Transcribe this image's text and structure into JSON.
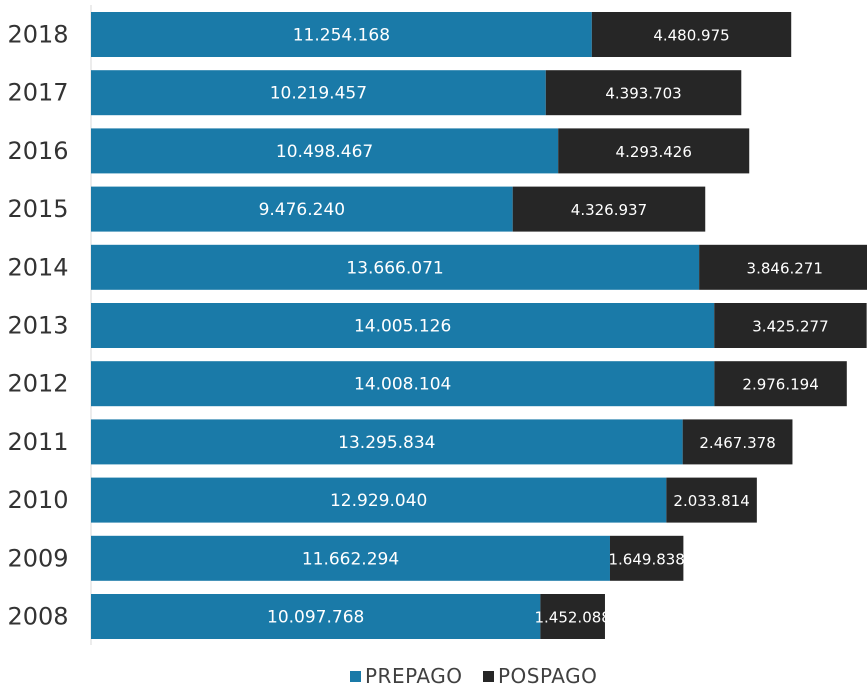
{
  "chart_data": {
    "type": "bar",
    "orientation": "horizontal",
    "stacked": true,
    "categories": [
      "2018",
      "2017",
      "2016",
      "2015",
      "2014",
      "2013",
      "2012",
      "2011",
      "2010",
      "2009",
      "2008"
    ],
    "series": [
      {
        "name": "PREPAGO",
        "color": "#1a7aa8",
        "values": [
          11254168,
          10219457,
          10498467,
          9476240,
          13666071,
          14005126,
          14008104,
          13295834,
          12929040,
          11662294,
          10097768
        ],
        "labels": [
          "11.254.168",
          "10.219.457",
          "10.498.467",
          "9.476.240",
          "13.666.071",
          "14.005.126",
          "14.008.104",
          "13.295.834",
          "12.929.040",
          "11.662.294",
          "10.097.768"
        ]
      },
      {
        "name": "POSPAGO",
        "color": "#262626",
        "values": [
          4480975,
          4393703,
          4293426,
          4326937,
          3846271,
          3425277,
          2976194,
          2467378,
          2033814,
          1649838,
          1452088
        ],
        "labels": [
          "4.480.975",
          "4.393.703",
          "4.293.426",
          "4.326.937",
          "3.846.271",
          "3.425.277",
          "2.976.194",
          "2.467.378",
          "2.033.814",
          "1.649.838",
          "1.452.088"
        ]
      }
    ],
    "title": "",
    "xlabel": "",
    "ylabel": "",
    "legend": "bottom",
    "grid": false
  }
}
